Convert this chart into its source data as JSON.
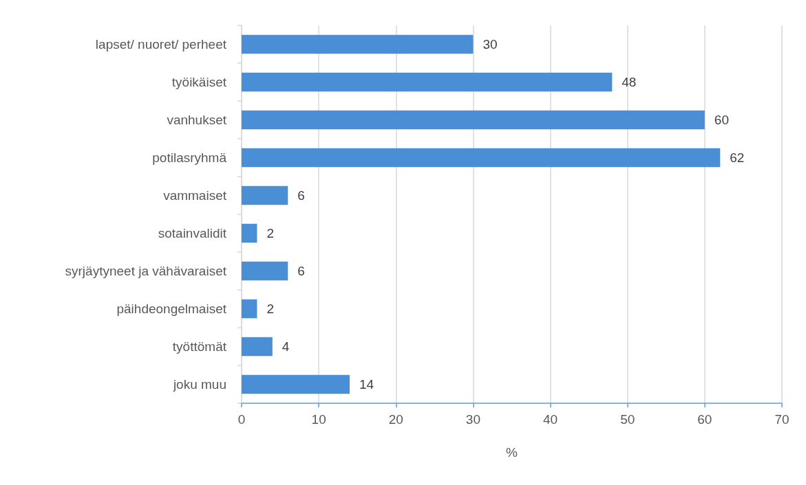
{
  "chart_data": {
    "type": "bar",
    "orientation": "horizontal",
    "xlabel": "%",
    "categories": [
      "lapset/ nuoret/ perheet",
      "työikäiset",
      "vanhukset",
      "potilasryhmä",
      "vammaiset",
      "sotainvalidit",
      "syrjäytyneet ja vähävaraiset",
      "päihdeongelmaiset",
      "työttömät",
      "joku muu"
    ],
    "values": [
      30,
      48,
      60,
      62,
      6,
      2,
      6,
      2,
      4,
      14
    ],
    "color": "#4a8ed6",
    "xlim": [
      0,
      70
    ],
    "xticks": [
      0,
      10,
      20,
      30,
      40,
      50,
      60,
      70
    ],
    "grid": "x",
    "data_labels": true
  }
}
